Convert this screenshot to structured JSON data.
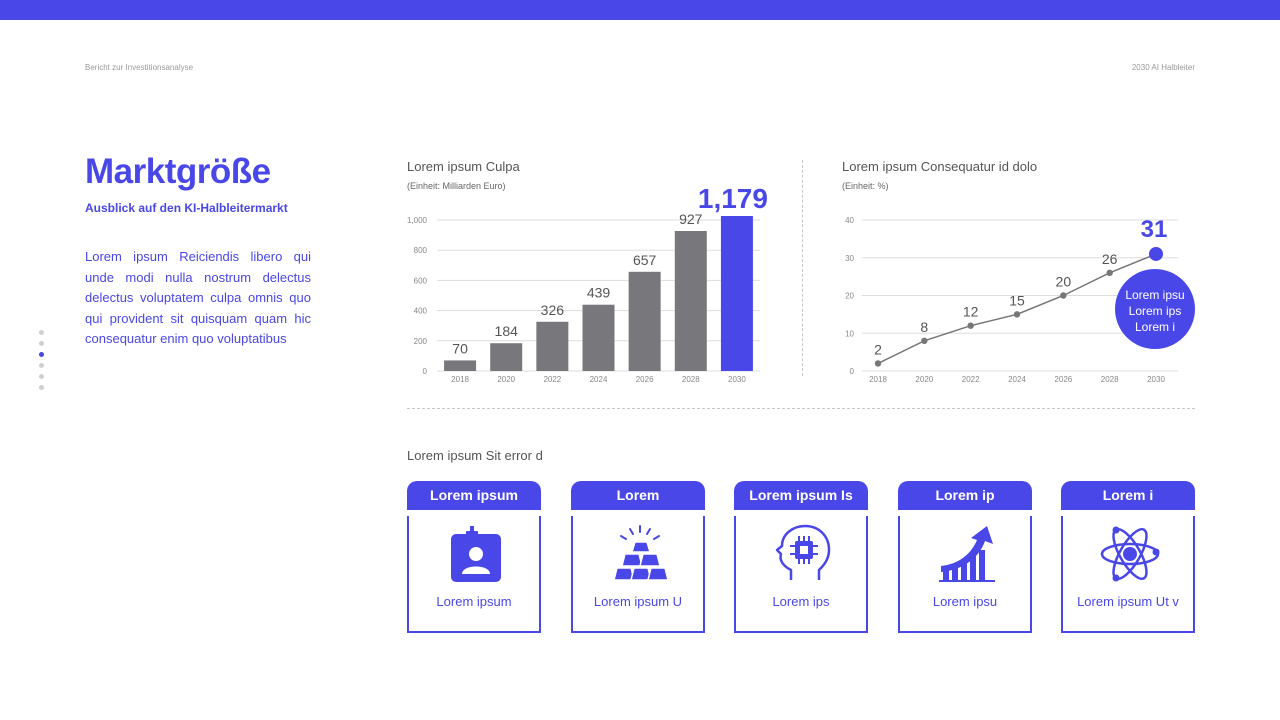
{
  "header": {
    "left": "Bericht zur Investitionsanalyse",
    "right": "2030 AI Halbleiter"
  },
  "title": "Marktgröße",
  "subtitle": "Ausblick auf den KI-Halbleitermarkt",
  "description": "Lorem ipsum Reiciendis libero qui unde modi nulla nostrum delectus delectus voluptatem culpa omnis quo qui provident sit quisquam quam hic consequatur enim quo voluptatibus",
  "pager": {
    "count": 6,
    "active_index": 2
  },
  "colors": {
    "accent": "#4a47e8",
    "bar": "#78777b",
    "grid": "#dddddd"
  },
  "chart_data": [
    {
      "type": "bar",
      "title": "Lorem ipsum Culpa",
      "unit": "(Einheit: Milliarden Euro)",
      "categories": [
        "2018",
        "2020",
        "2022",
        "2024",
        "2026",
        "2028",
        "2030"
      ],
      "values": [
        70,
        184,
        326,
        439,
        657,
        927,
        1179
      ],
      "value_labels": [
        "70",
        "184",
        "326",
        "439",
        "657",
        "927",
        "1,179"
      ],
      "yticks": [
        "0",
        "200",
        "400",
        "600",
        "800",
        "1,000"
      ],
      "ylim": [
        0,
        1000
      ],
      "highlight_index": 6,
      "grid": true
    },
    {
      "type": "line",
      "title": "Lorem ipsum Consequatur id dolo",
      "unit": "(Einheit: %)",
      "categories": [
        "2018",
        "2020",
        "2022",
        "2024",
        "2026",
        "2028",
        "2030"
      ],
      "values": [
        2,
        8,
        12,
        15,
        20,
        26,
        31
      ],
      "yticks": [
        "0",
        "10",
        "20",
        "30",
        "40"
      ],
      "ylim": [
        0,
        40
      ],
      "highlight_index": 6,
      "callout": [
        "Lorem ipsu",
        "Lorem ips",
        "Lorem i"
      ],
      "grid": true
    }
  ],
  "section": {
    "title": "Lorem ipsum Sit error d",
    "cards": [
      {
        "head": "Lorem ipsum",
        "label": "Lorem ipsum",
        "icon": "id-badge-icon"
      },
      {
        "head": "Lorem",
        "label": "Lorem ipsum U",
        "icon": "gold-bars-icon"
      },
      {
        "head": "Lorem ipsum Is",
        "label": "Lorem ips",
        "icon": "ai-head-chip-icon"
      },
      {
        "head": "Lorem ip",
        "label": "Lorem ipsu",
        "icon": "growth-chart-icon"
      },
      {
        "head": "Lorem i",
        "label": "Lorem ipsum Ut v",
        "icon": "atom-icon"
      }
    ]
  }
}
